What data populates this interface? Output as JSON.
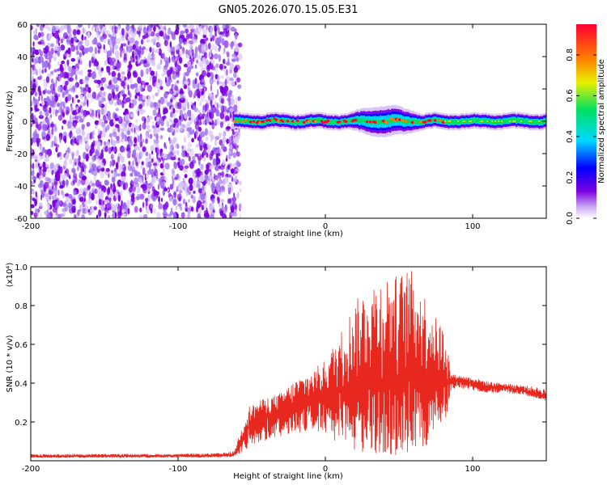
{
  "title": "GN05.2026.070.15.05.E31",
  "chart_data": [
    {
      "type": "heatmap",
      "title": "GN05.2026.070.15.05.E31",
      "xlabel": "Height of straight line (km)",
      "ylabel": "Frequency (Hz)",
      "xlim": [
        -200,
        150
      ],
      "ylim": [
        -60,
        60
      ],
      "xticks": [
        -200,
        -100,
        0,
        100
      ],
      "yticks": [
        -60,
        -40,
        -20,
        0,
        20,
        40,
        60
      ],
      "colorbar": {
        "label": "Normalized spectral amplitude",
        "range": [
          0,
          0.95
        ],
        "ticks": [
          "0.0",
          "0.2",
          "0.4",
          "0.6",
          "0.8"
        ],
        "colors": [
          "#ffffff",
          "#b98af0",
          "#7a00e0",
          "#0000ff",
          "#00d8ff",
          "#00e060",
          "#e8f000",
          "#ff8000",
          "#ff0030"
        ]
      },
      "features": {
        "noise_region_km": [
          -200,
          -62
        ],
        "signal_band_km": [
          -62,
          150
        ],
        "signal_center_hz": 0,
        "signal_halfwidth_hz": [
          -10,
          13
        ]
      }
    },
    {
      "type": "line",
      "xlabel": "Height of straight line (km)",
      "ylabel": "SNR (10 * v/v)",
      "y_multiplier": "(x10⁴)",
      "xlim": [
        -200,
        150
      ],
      "ylim": [
        0,
        1.0
      ],
      "xticks": [
        -200,
        -100,
        0,
        100
      ],
      "yticks": [
        "0.2",
        "0.4",
        "0.6",
        "0.8",
        "1.0"
      ],
      "series": [
        {
          "name": "SNR",
          "color": "#e8281e",
          "x": [
            -200,
            -150,
            -100,
            -70,
            -62,
            -52,
            -42,
            -30,
            -20,
            -10,
            0,
            10,
            20,
            30,
            40,
            50,
            57,
            65,
            75,
            82,
            85,
            90,
            100,
            110,
            120,
            135,
            150
          ],
          "y": [
            0.022,
            0.024,
            0.025,
            0.026,
            0.03,
            0.18,
            0.23,
            0.25,
            0.28,
            0.3,
            0.33,
            0.35,
            0.37,
            0.39,
            0.4,
            0.41,
            0.42,
            0.42,
            0.4,
            0.4,
            0.41,
            0.42,
            0.4,
            0.38,
            0.38,
            0.36,
            0.33
          ],
          "envelope_max": [
            0.035,
            0.035,
            0.035,
            0.04,
            0.05,
            0.28,
            0.32,
            0.35,
            0.42,
            0.46,
            0.52,
            0.66,
            0.82,
            0.92,
            0.96,
            0.96,
            1.0,
            0.9,
            0.74,
            0.68,
            0.45,
            0.44,
            0.43,
            0.41,
            0.4,
            0.39,
            0.37
          ],
          "envelope_min": [
            0.015,
            0.015,
            0.016,
            0.017,
            0.02,
            0.06,
            0.1,
            0.12,
            0.14,
            0.16,
            0.14,
            0.06,
            0.04,
            0.03,
            0.02,
            0.02,
            0.02,
            0.05,
            0.12,
            0.2,
            0.36,
            0.37,
            0.36,
            0.35,
            0.35,
            0.34,
            0.31
          ]
        }
      ]
    }
  ]
}
